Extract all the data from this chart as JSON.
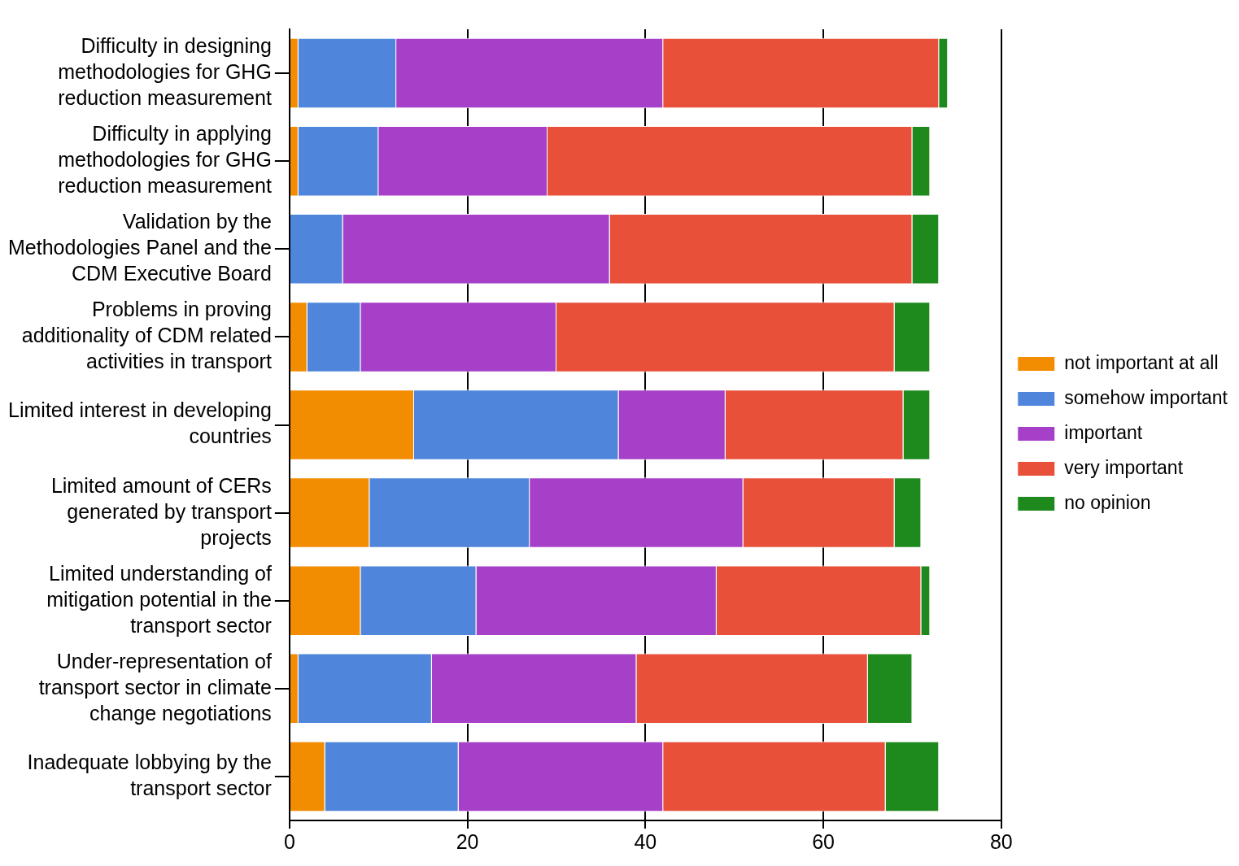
{
  "chart_data": {
    "type": "bar",
    "orientation": "horizontal",
    "stacked": true,
    "categories": [
      "Difficulty in designing methodologies for GHG reduction measurement",
      "Difficulty in applying methodologies for GHG reduction measurement",
      "Validation by the Methodologies Panel and the CDM Executive Board",
      "Problems in proving additionality of CDM related activities in transport",
      "Limited interest in developing countries",
      "Limited amount of CERs generated by transport projects",
      "Limited understanding of mitigation potential in the transport sector",
      "Under-representation of transport sector in climate change negotiations",
      "Inadequate lobbying by the transport sector"
    ],
    "series": [
      {
        "name": "not important at all",
        "color": "#f28c00",
        "values": [
          1,
          1,
          0,
          2,
          14,
          9,
          8,
          1,
          4
        ]
      },
      {
        "name": "somehow important",
        "color": "#4f86dc",
        "values": [
          11,
          9,
          6,
          6,
          23,
          18,
          13,
          15,
          15
        ]
      },
      {
        "name": "important",
        "color": "#a640c8",
        "values": [
          30,
          19,
          30,
          22,
          12,
          24,
          27,
          23,
          23
        ]
      },
      {
        "name": "very important",
        "color": "#e8503a",
        "values": [
          31,
          41,
          34,
          38,
          20,
          17,
          23,
          26,
          25
        ]
      },
      {
        "name": "no opinion",
        "color": "#1e8a1e",
        "values": [
          1,
          2,
          3,
          4,
          3,
          3,
          1,
          5,
          6
        ]
      }
    ],
    "xlim": [
      0,
      80
    ],
    "xticks": [
      0,
      20,
      40,
      60,
      80
    ],
    "grid": "x",
    "legend": "right"
  }
}
